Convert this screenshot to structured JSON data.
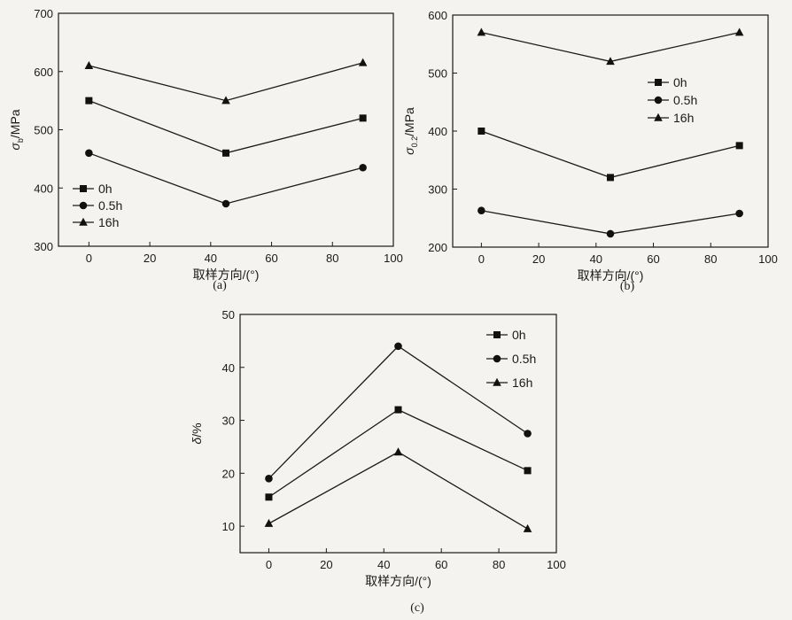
{
  "chart_data": [
    {
      "type": "line",
      "caption": "(a)",
      "xlabel": "取样方向/(°)",
      "ylabel": {
        "symbol": "σ",
        "subscript": "b",
        "unit": "/MPa"
      },
      "xlim": [
        -10,
        100
      ],
      "ylim": [
        300,
        700
      ],
      "xticks": [
        0,
        20,
        40,
        60,
        80,
        100
      ],
      "yticks": [
        300,
        400,
        500,
        600,
        700
      ],
      "x": [
        0,
        45,
        90
      ],
      "legend_position": "bottom-left",
      "series": [
        {
          "name": "0h",
          "marker": "square",
          "values": [
            550,
            460,
            520
          ]
        },
        {
          "name": "0.5h",
          "marker": "circle",
          "values": [
            460,
            373,
            435
          ]
        },
        {
          "name": "16h",
          "marker": "triangle",
          "values": [
            610,
            550,
            615
          ]
        }
      ]
    },
    {
      "type": "line",
      "caption": "(b)",
      "xlabel": "取样方向/(°)",
      "ylabel": {
        "symbol": "σ",
        "subscript": "0.2",
        "unit": "/MPa"
      },
      "xlim": [
        -10,
        100
      ],
      "ylim": [
        200,
        600
      ],
      "xticks": [
        0,
        20,
        40,
        60,
        80,
        100
      ],
      "yticks": [
        200,
        300,
        400,
        500,
        600
      ],
      "x": [
        0,
        45,
        90
      ],
      "legend_position": "right-middle",
      "series": [
        {
          "name": "0h",
          "marker": "square",
          "values": [
            400,
            320,
            375
          ]
        },
        {
          "name": "0.5h",
          "marker": "circle",
          "values": [
            263,
            223,
            258
          ]
        },
        {
          "name": "16h",
          "marker": "triangle",
          "values": [
            570,
            520,
            570
          ]
        }
      ]
    },
    {
      "type": "line",
      "caption": "(c)",
      "xlabel": "取样方向/(°)",
      "ylabel": {
        "symbol": "δ",
        "subscript": "",
        "unit": "/%"
      },
      "xlim": [
        -10,
        100
      ],
      "ylim": [
        5,
        50
      ],
      "xticks": [
        0,
        20,
        40,
        60,
        80,
        100
      ],
      "yticks": [
        10,
        20,
        30,
        40,
        50
      ],
      "x": [
        0,
        45,
        90
      ],
      "legend_position": "top-right",
      "series": [
        {
          "name": "0h",
          "marker": "square",
          "values": [
            15.5,
            32,
            20.5
          ]
        },
        {
          "name": "0.5h",
          "marker": "circle",
          "values": [
            19,
            44,
            27.5
          ]
        },
        {
          "name": "16h",
          "marker": "triangle",
          "values": [
            10.5,
            24,
            9.5
          ]
        }
      ]
    }
  ]
}
